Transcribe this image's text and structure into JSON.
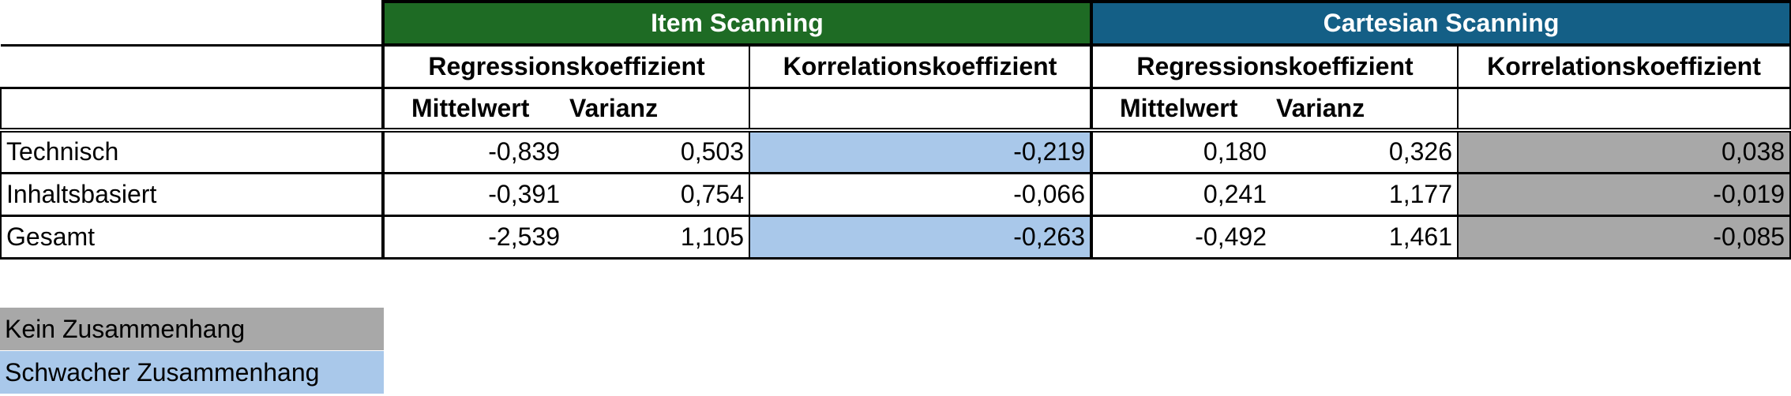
{
  "groups": {
    "item": "Item Scanning",
    "cartesian": "Cartesian Scanning"
  },
  "subheaders": {
    "regression": "Regressionskoeffizient",
    "correlation": "Korrelationskoeffizient",
    "mean": "Mittelwert",
    "variance": "Varianz"
  },
  "rows": [
    {
      "label": "Technisch",
      "item_mean": "-0,839",
      "item_var": "0,503",
      "item_corr": "-0,219",
      "cart_mean": "0,180",
      "cart_var": "0,326",
      "cart_corr": "0,038"
    },
    {
      "label": "Inhaltsbasiert",
      "item_mean": "-0,391",
      "item_var": "0,754",
      "item_corr": "-0,066",
      "cart_mean": "0,241",
      "cart_var": "1,177",
      "cart_corr": "-0,019"
    },
    {
      "label": "Gesamt",
      "item_mean": "-2,539",
      "item_var": "1,105",
      "item_corr": "-0,263",
      "cart_mean": "-0,492",
      "cart_var": "1,461",
      "cart_corr": "-0,085"
    }
  ],
  "legend": {
    "none": "Kein Zusammenhang",
    "weak": "Schwacher Zusammenhang"
  },
  "colors": {
    "item_header": "#1e6b24",
    "cartesian_header": "#145f86",
    "weak_fill": "#a9c8ea",
    "none_fill": "#a8a8a8"
  }
}
